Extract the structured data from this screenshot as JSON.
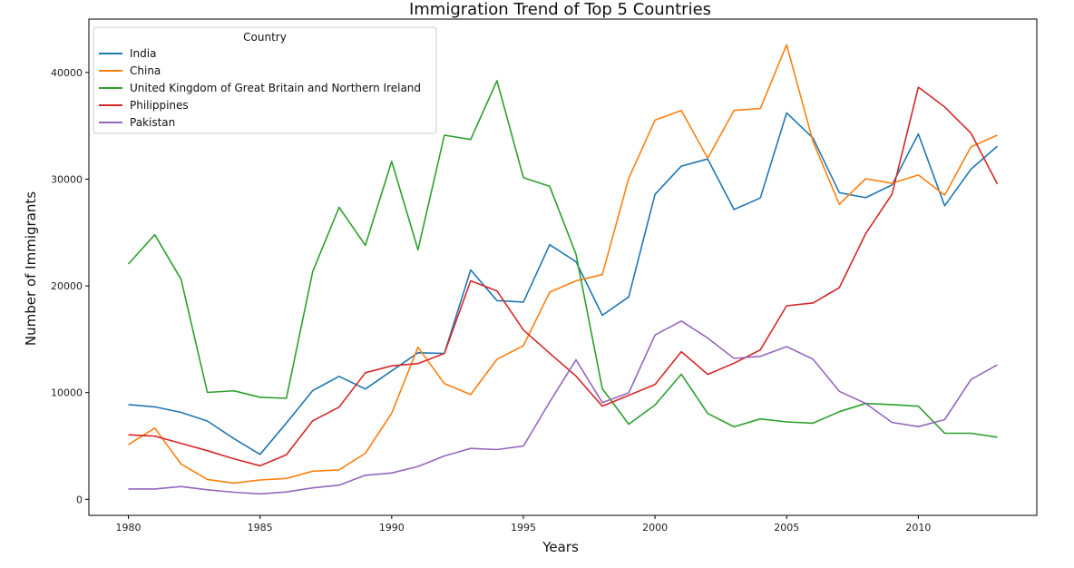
{
  "chart_data": {
    "type": "line",
    "title": "Immigration Trend of Top 5 Countries",
    "xlabel": "Years",
    "ylabel": "Number of Immigrants",
    "xlim": [
      1978.5,
      2014.5
    ],
    "ylim": [
      -1500,
      45000
    ],
    "x_ticks": [
      1980,
      1985,
      1990,
      1995,
      2000,
      2005,
      2010
    ],
    "y_ticks": [
      0,
      10000,
      20000,
      30000,
      40000
    ],
    "grid": false,
    "legend": {
      "title": "Country",
      "placement": "top-left"
    },
    "x": [
      1980,
      1981,
      1982,
      1983,
      1984,
      1985,
      1986,
      1987,
      1988,
      1989,
      1990,
      1991,
      1992,
      1993,
      1994,
      1995,
      1996,
      1997,
      1998,
      1999,
      2000,
      2001,
      2002,
      2003,
      2004,
      2005,
      2006,
      2007,
      2008,
      2009,
      2010,
      2011,
      2012,
      2013
    ],
    "series": [
      {
        "name": "India",
        "color": "#1f77b4",
        "values": [
          8880,
          8670,
          8147,
          7338,
          5704,
          4211,
          7150,
          10189,
          11522,
          10343,
          12041,
          13734,
          13673,
          21496,
          18620,
          18489,
          23859,
          22268,
          17241,
          18974,
          28572,
          31223,
          31889,
          27155,
          28235,
          36210,
          33848,
          28742,
          28261,
          29456,
          34235,
          27509,
          30933,
          33087
        ]
      },
      {
        "name": "China",
        "color": "#ff7f0e",
        "values": [
          5123,
          6682,
          3308,
          1863,
          1527,
          1816,
          1960,
          2643,
          2758,
          4323,
          8076,
          14255,
          10846,
          9817,
          13128,
          14398,
          19415,
          20475,
          21049,
          30069,
          35529,
          36434,
          31961,
          36439,
          36619,
          42584,
          33518,
          27642,
          30037,
          29622,
          30391,
          28502,
          33024,
          34129
        ]
      },
      {
        "name": "United Kingdom of Great Britain and Northern Ireland",
        "color": "#2ca02c",
        "values": [
          22045,
          24796,
          20620,
          10015,
          10170,
          9564,
          9470,
          21337,
          27359,
          23795,
          31668,
          23380,
          34123,
          33720,
          39231,
          30145,
          29322,
          22965,
          10367,
          7045,
          8840,
          11728,
          8046,
          6797,
          7533,
          7258,
          7140,
          8216,
          8979,
          8876,
          8724,
          6204,
          6195,
          5827
        ]
      },
      {
        "name": "Philippines",
        "color": "#d62728",
        "values": [
          6051,
          5921,
          5249,
          4562,
          3801,
          3150,
          4166,
          7360,
          8639,
          11865,
          12509,
          12718,
          13670,
          20479,
          19532,
          15864,
          13692,
          11549,
          8735,
          9734,
          10763,
          13836,
          11707,
          12758,
          14004,
          18139,
          18400,
          19837,
          24887,
          28573,
          38617,
          36765,
          34315,
          29544
        ]
      },
      {
        "name": "Pakistan",
        "color": "#9467bd",
        "values": [
          978,
          972,
          1201,
          900,
          668,
          514,
          691,
          1072,
          1334,
          2261,
          2470,
          3079,
          4071,
          4777,
          4666,
          4994,
          9125,
          13073,
          9068,
          9979,
          15400,
          16708,
          15110,
          13205,
          13399,
          14314,
          13127,
          10124,
          8994,
          7217,
          6811,
          7468,
          11227,
          12603
        ]
      }
    ]
  }
}
